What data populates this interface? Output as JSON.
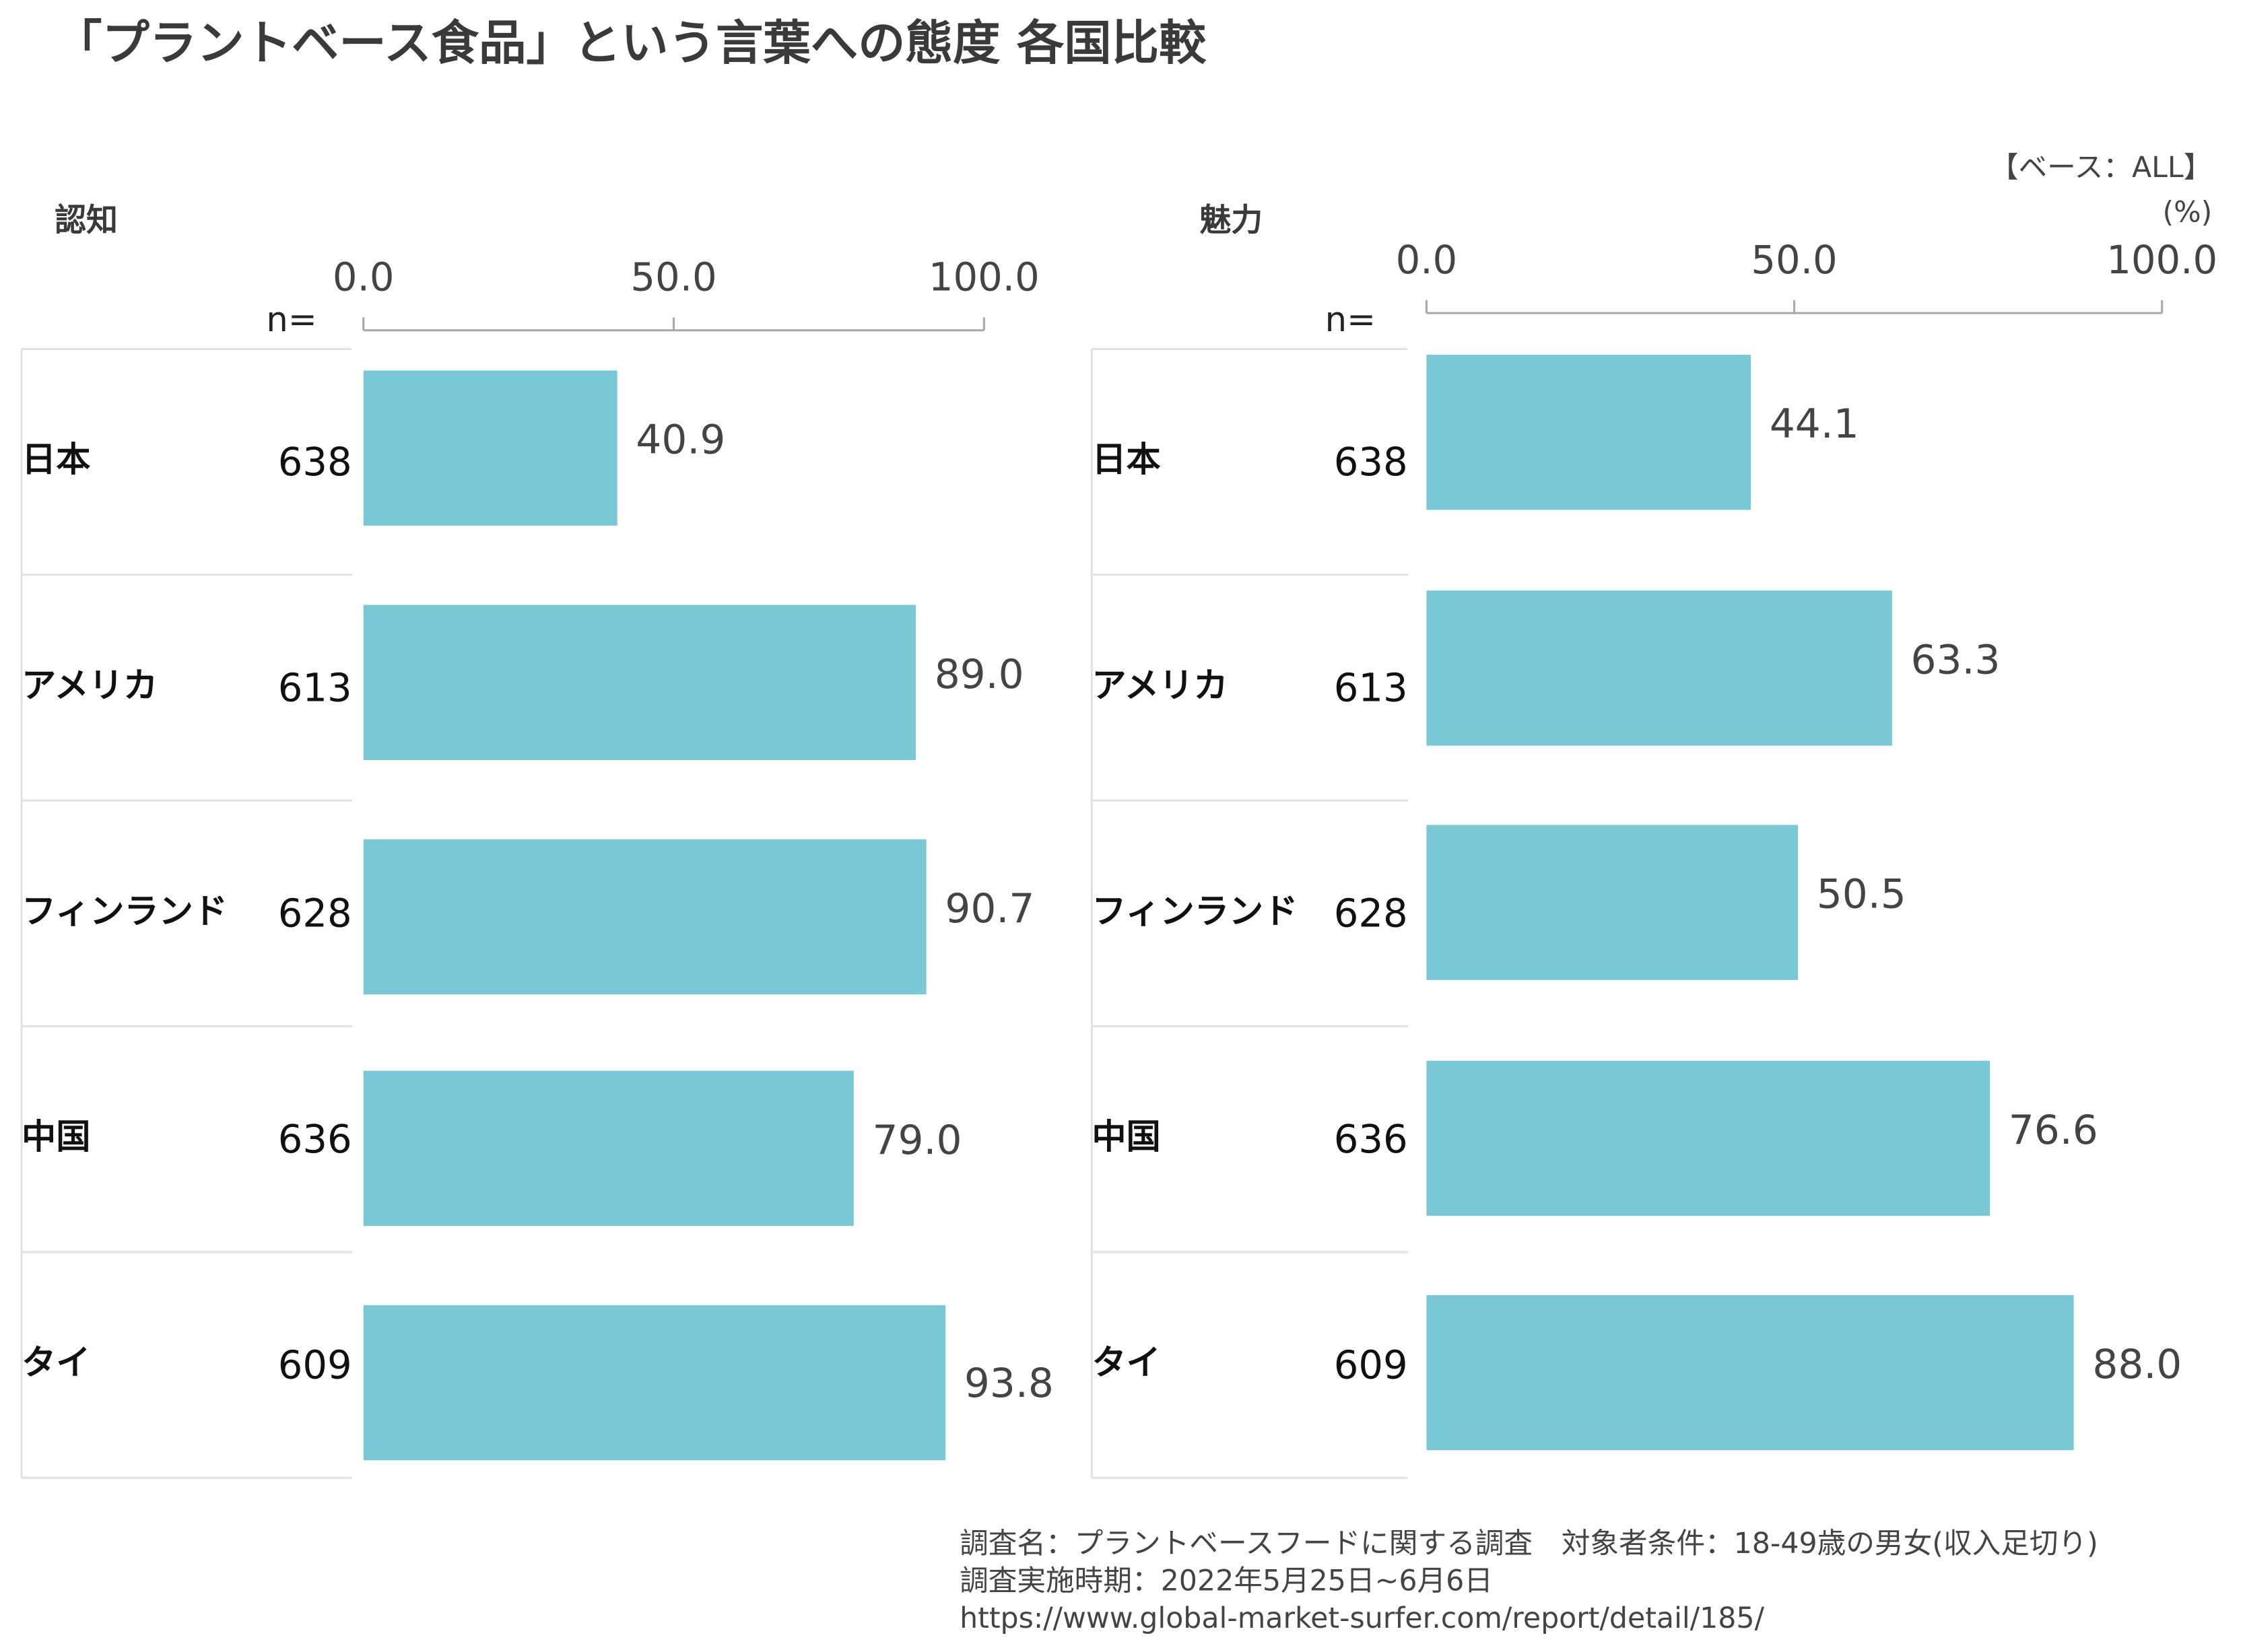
{
  "title": "「プラントベース食品」という言葉への態度 各国比較",
  "base_note": "【ベース：ALL】",
  "unit": "(%)",
  "footer": [
    "調査名：プラントベースフードに関する調査　対象者条件：18-49歳の男女(収入足切り)",
    "調査実施時期：2022年5月25日~6月6日",
    "https://www.global-market-surfer.com/report/detail/185/"
  ],
  "chart_data": [
    {
      "type": "barh",
      "title": "認知",
      "n_label": "n=",
      "categories": [
        "日本",
        "アメリカ",
        "フィンランド",
        "中国",
        "タイ"
      ],
      "sample_sizes": [
        638,
        613,
        628,
        636,
        609
      ],
      "values": [
        40.9,
        89.0,
        90.7,
        79.0,
        93.8
      ],
      "value_labels": [
        "40.9",
        "89.0",
        "90.7",
        "79.0",
        "93.8"
      ],
      "color": "#78c8d6",
      "xlim": [
        0,
        100
      ],
      "xticks": [
        {
          "value": 0,
          "label": "0.0"
        },
        {
          "value": 50,
          "label": "50.0"
        },
        {
          "value": 100,
          "label": "100.0"
        }
      ]
    },
    {
      "type": "barh",
      "title": "魅力",
      "n_label": "n=",
      "categories": [
        "日本",
        "アメリカ",
        "フィンランド",
        "中国",
        "タイ"
      ],
      "sample_sizes": [
        638,
        613,
        628,
        636,
        609
      ],
      "values": [
        44.1,
        63.3,
        50.5,
        76.6,
        88.0
      ],
      "value_labels": [
        "44.1",
        "63.3",
        "50.5",
        "76.6",
        "88.0"
      ],
      "color": "#78c8d6",
      "xlim": [
        0,
        100
      ],
      "xticks": [
        {
          "value": 0,
          "label": "0.0"
        },
        {
          "value": 50,
          "label": "50.0"
        },
        {
          "value": 100,
          "label": "100.0"
        }
      ]
    }
  ]
}
